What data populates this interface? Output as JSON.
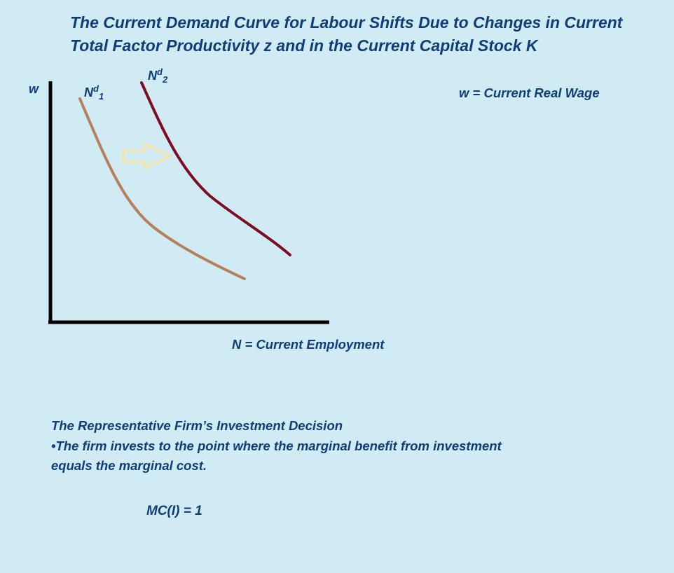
{
  "title": {
    "line1": "The Current Demand Curve for Labour Shifts Due to Changes in Current",
    "line2": "Total Factor Productivity z and in the Current Capital Stock K"
  },
  "diagram": {
    "y_axis_label": "w",
    "x_axis_label": "N = Current Employment",
    "legend_note": "w = Current Real Wage",
    "curve1": {
      "base": "N",
      "sup": "d",
      "sub": "1",
      "color": "#b7805c"
    },
    "curve2": {
      "base": "N",
      "sup": "d",
      "sub": "2",
      "color": "#7e0c22"
    },
    "arrow_color": "#f2e4b0",
    "axis_color": "#000000"
  },
  "section": {
    "heading": "The Representative Firm’s Investment Decision",
    "bullet_line1": "•The firm invests to the point where the marginal benefit from investment",
    "bullet_line2": "equals the marginal cost."
  },
  "formula": "MC(I) = 1"
}
